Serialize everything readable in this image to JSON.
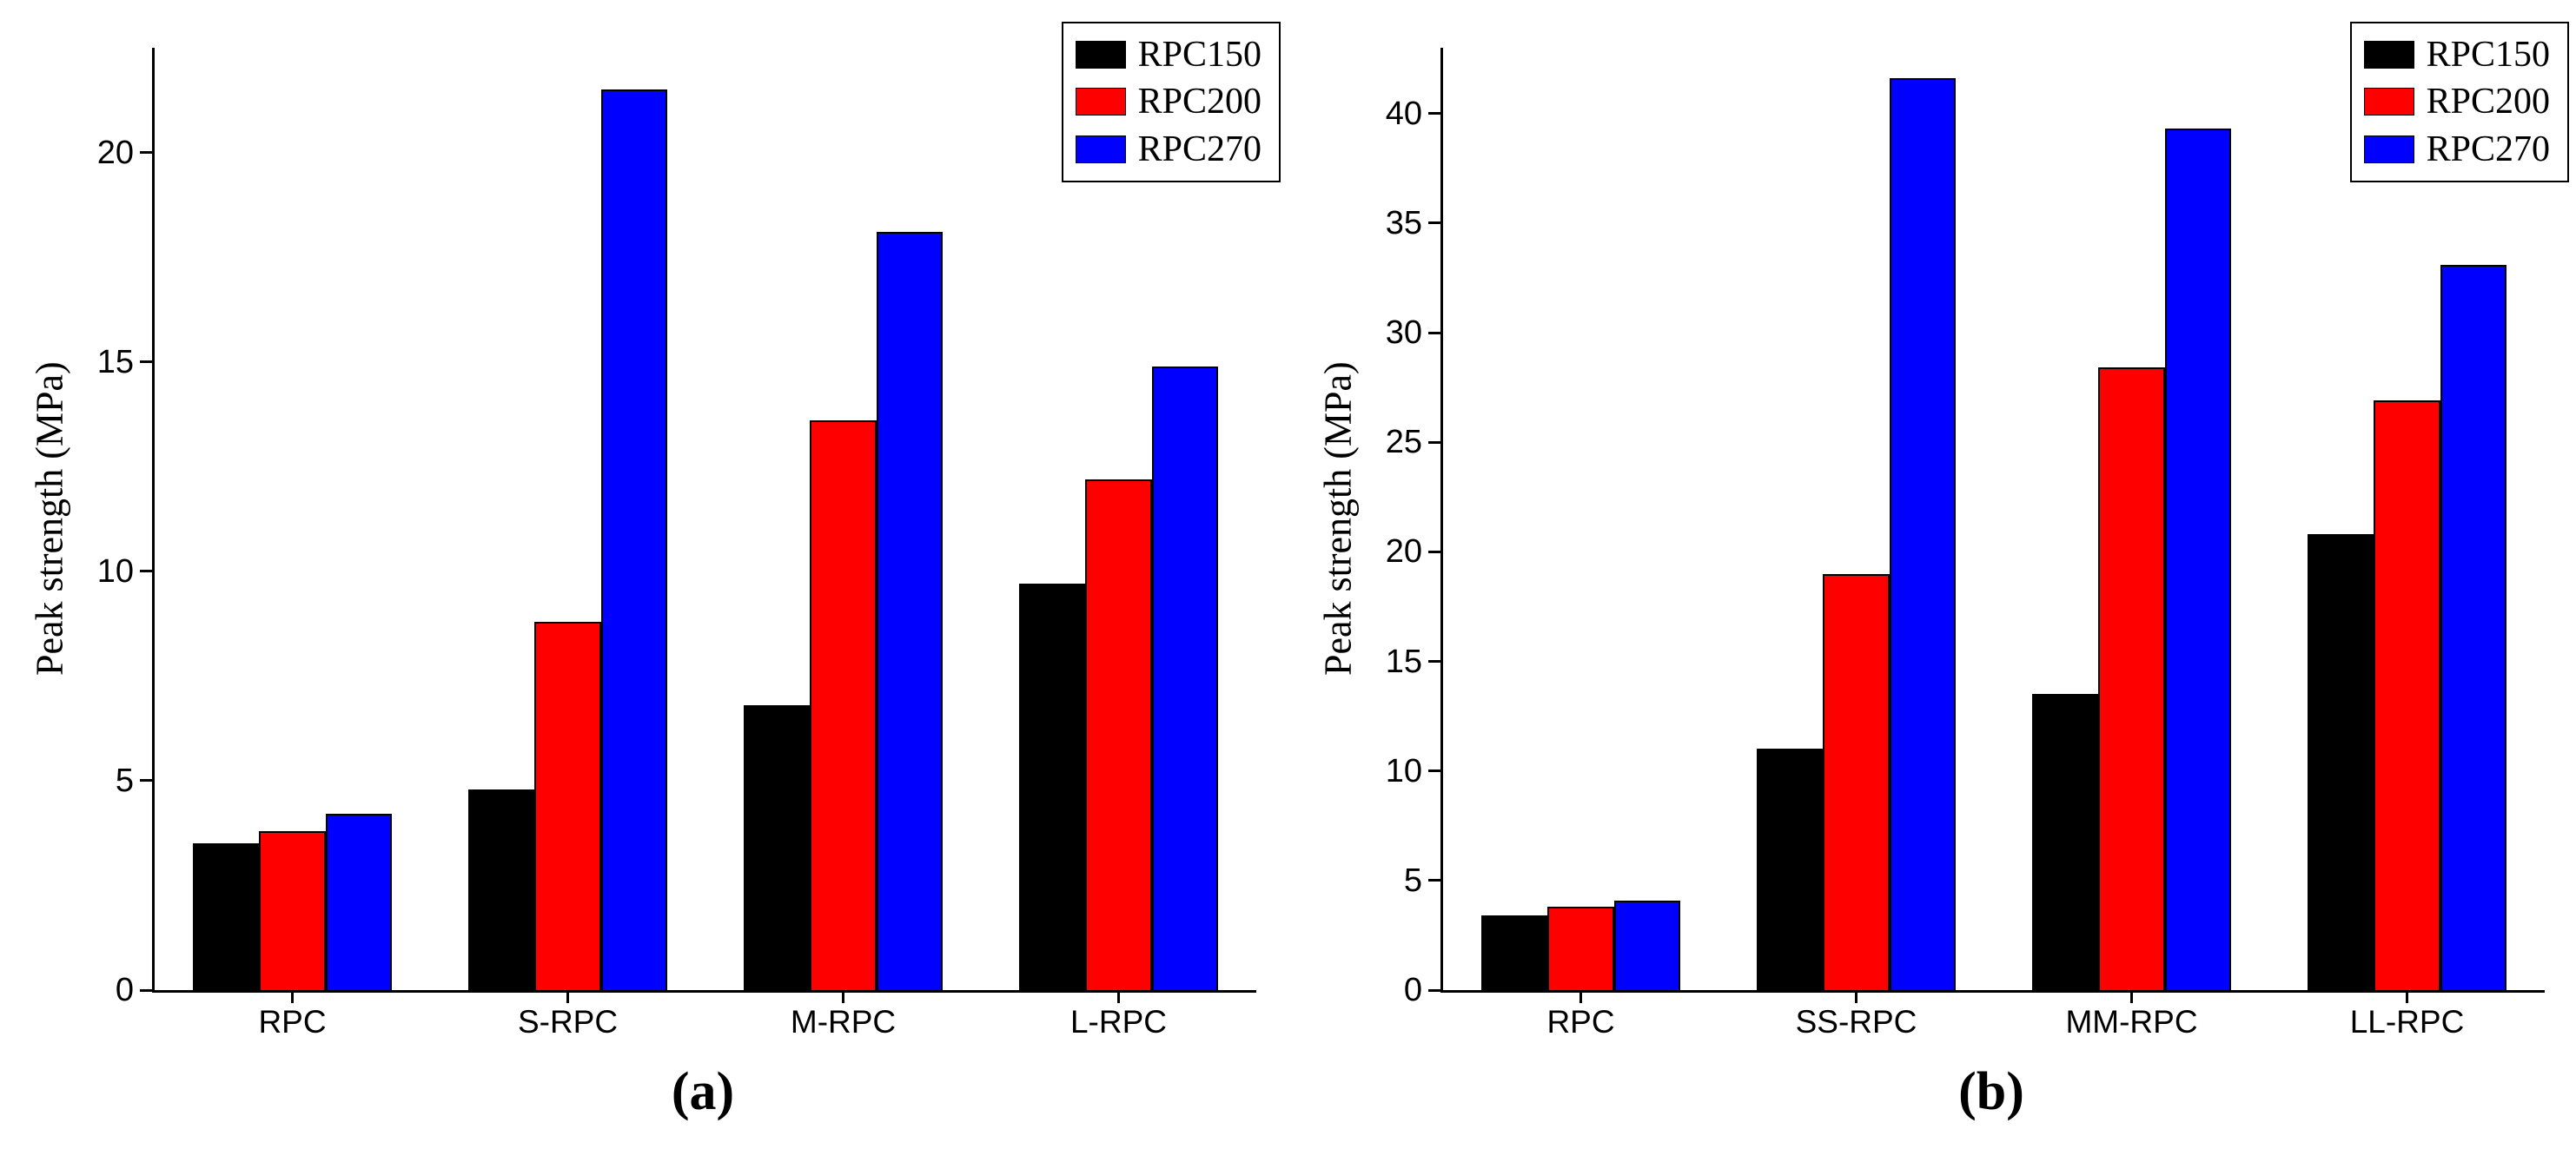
{
  "figure": {
    "background_color": "#ffffff",
    "panel_count": 2
  },
  "chart_data": [
    {
      "type": "bar",
      "sublabel": "(a)",
      "title": "",
      "ylabel": "Peak strength (MPa)",
      "xlabel": "",
      "categories": [
        "RPC",
        "S-RPC",
        "M-RPC",
        "L-RPC"
      ],
      "series": [
        {
          "name": "RPC150",
          "color": "#000000",
          "values": [
            3.5,
            4.8,
            6.8,
            9.7
          ]
        },
        {
          "name": "RPC200",
          "color": "#ff0000",
          "values": [
            3.8,
            8.8,
            13.6,
            12.2
          ]
        },
        {
          "name": "RPC270",
          "color": "#0000ff",
          "values": [
            4.2,
            21.5,
            18.1,
            14.9
          ]
        }
      ],
      "ylim": [
        0,
        22.5
      ],
      "yticks": [
        0,
        5,
        10,
        15,
        20
      ],
      "grid": false,
      "bar_edge_color": "#000000",
      "legend": {
        "position": "top-right",
        "entries": [
          "RPC150",
          "RPC200",
          "RPC270"
        ]
      }
    },
    {
      "type": "bar",
      "sublabel": "(b)",
      "title": "",
      "ylabel": "Peak strength (MPa)",
      "xlabel": "",
      "categories": [
        "RPC",
        "SS-RPC",
        "MM-RPC",
        "LL-RPC"
      ],
      "series": [
        {
          "name": "RPC150",
          "color": "#000000",
          "values": [
            3.4,
            11.0,
            13.5,
            20.8
          ]
        },
        {
          "name": "RPC200",
          "color": "#ff0000",
          "values": [
            3.8,
            19.0,
            28.4,
            26.9
          ]
        },
        {
          "name": "RPC270",
          "color": "#0000ff",
          "values": [
            4.1,
            41.6,
            39.3,
            33.1
          ]
        }
      ],
      "ylim": [
        0,
        43
      ],
      "yticks": [
        0,
        5,
        10,
        15,
        20,
        25,
        30,
        35,
        40
      ],
      "grid": false,
      "bar_edge_color": "#000000",
      "legend": {
        "position": "top-right",
        "entries": [
          "RPC150",
          "RPC200",
          "RPC270"
        ]
      }
    }
  ]
}
